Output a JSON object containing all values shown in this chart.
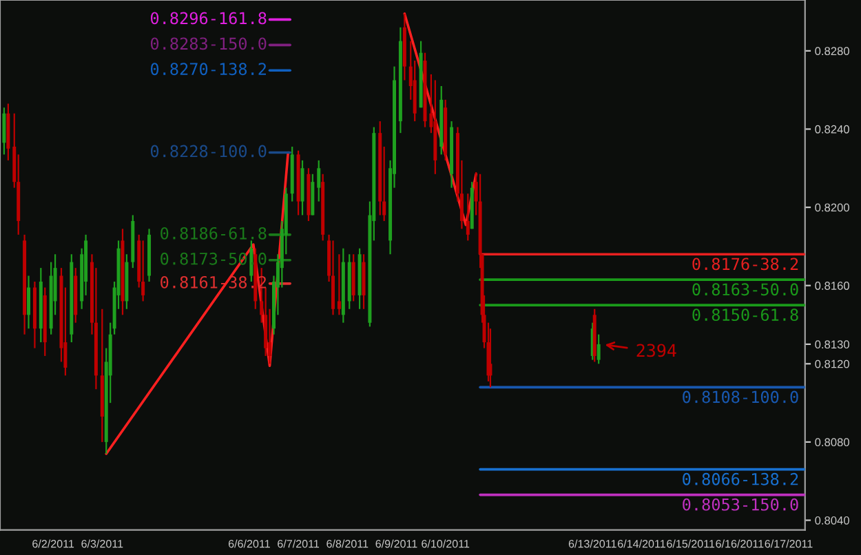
{
  "chart_data": {
    "type": "candlestick",
    "x": [
      "2011-06-01T00:00",
      "2011-06-01T02:00",
      "2011-06-01T05:00",
      "2011-06-01T07:00",
      "2011-06-01T10:00",
      "2011-06-01T12:00",
      "2011-06-01T15:00",
      "2011-06-01T18:00",
      "2011-06-01T20:00",
      "2011-06-01T23:00",
      "2011-06-02T01:00",
      "2011-06-02T04:00",
      "2011-06-02T06:00",
      "2011-06-02T09:00",
      "2011-06-02T11:00",
      "2011-06-02T14:00",
      "2011-06-02T16:00",
      "2011-06-02T19:00",
      "2011-06-02T21:00",
      "2011-06-03T00:00",
      "2011-06-03T02:00",
      "2011-06-03T04:00",
      "2011-06-03T06:00",
      "2011-06-03T08:00",
      "2011-06-03T10:00",
      "2011-06-03T12:00",
      "2011-06-03T15:00",
      "2011-06-03T18:00",
      "2011-06-03T20:00",
      "2011-06-03T23:00",
      "2011-06-06T01:00",
      "2011-06-06T03:00",
      "2011-06-06T06:00",
      "2011-06-06T08:00",
      "2011-06-06T10:00",
      "2011-06-06T12:00",
      "2011-06-06T14:00",
      "2011-06-06T16:00",
      "2011-06-06T18:00",
      "2011-06-06T21:00",
      "2011-06-07T00:00",
      "2011-06-07T02:00",
      "2011-06-07T05:00",
      "2011-06-07T07:00",
      "2011-06-07T10:00",
      "2011-06-07T12:00",
      "2011-06-07T15:00",
      "2011-06-07T17:00",
      "2011-06-07T20:00",
      "2011-06-07T22:00",
      "2011-06-08T01:00",
      "2011-06-08T03:00",
      "2011-06-08T06:00",
      "2011-06-08T08:00",
      "2011-06-08T11:00",
      "2011-06-08T13:00",
      "2011-06-08T16:00",
      "2011-06-08T18:00",
      "2011-06-08T21:00",
      "2011-06-08T23:00",
      "2011-06-09T02:00",
      "2011-06-09T04:00",
      "2011-06-09T07:00",
      "2011-06-09T09:00",
      "2011-06-09T12:00",
      "2011-06-09T14:00",
      "2011-06-09T17:00",
      "2011-06-09T19:00",
      "2011-06-09T22:00",
      "2011-06-10T00:00",
      "2011-06-10T03:00",
      "2011-06-10T06:00",
      "2011-06-10T08:00",
      "2011-06-10T11:00",
      "2011-06-10T13:00",
      "2011-06-10T15:00",
      "2011-06-10T17:00",
      "2011-06-10T18:00",
      "2011-06-10T19:00",
      "2011-06-10T21:00",
      "2011-06-10T22:00",
      "2011-06-13T00:00",
      "2011-06-13T01:00",
      "2011-06-13T03:00"
    ],
    "ohlc": [
      [
        0.8233,
        0.8251,
        0.8227,
        0.8248
      ],
      [
        0.8248,
        0.8253,
        0.8224,
        0.823
      ],
      [
        0.8231,
        0.8248,
        0.821,
        0.8213
      ],
      [
        0.8213,
        0.8227,
        0.8186,
        0.8193
      ],
      [
        0.8183,
        0.8186,
        0.8135,
        0.8145
      ],
      [
        0.8145,
        0.8165,
        0.8138,
        0.8159
      ],
      [
        0.8159,
        0.8162,
        0.8128,
        0.8138
      ],
      [
        0.8138,
        0.8169,
        0.8131,
        0.8162
      ],
      [
        0.8155,
        0.8159,
        0.8124,
        0.8131
      ],
      [
        0.8138,
        0.8172,
        0.8135,
        0.8165
      ],
      [
        0.8152,
        0.8176,
        0.8145,
        0.8169
      ],
      [
        0.8165,
        0.8169,
        0.8121,
        0.8128
      ],
      [
        0.8131,
        0.8159,
        0.8114,
        0.8118
      ],
      [
        0.8135,
        0.8176,
        0.8131,
        0.8172
      ],
      [
        0.8165,
        0.8169,
        0.8141,
        0.8145
      ],
      [
        0.8152,
        0.8179,
        0.8148,
        0.8176
      ],
      [
        0.8162,
        0.8186,
        0.8155,
        0.8183
      ],
      [
        0.8172,
        0.8176,
        0.8135,
        0.8141
      ],
      [
        0.8141,
        0.8169,
        0.8107,
        0.8114
      ],
      [
        0.8114,
        0.8148,
        0.808,
        0.8093
      ],
      [
        0.808,
        0.8128,
        0.8074,
        0.8121
      ],
      [
        0.8114,
        0.8141,
        0.81,
        0.8135
      ],
      [
        0.8138,
        0.8162,
        0.8135,
        0.8159
      ],
      [
        0.8155,
        0.8183,
        0.8148,
        0.8179
      ],
      [
        0.8183,
        0.8189,
        0.8145,
        0.8152
      ],
      [
        0.8152,
        0.8176,
        0.8148,
        0.8172
      ],
      [
        0.8172,
        0.8196,
        0.8169,
        0.8193
      ],
      [
        0.8183,
        0.8186,
        0.8159,
        0.8162
      ],
      [
        0.8162,
        0.8183,
        0.8152,
        0.8155
      ],
      [
        0.8165,
        0.8189,
        0.8162,
        0.8186
      ],
      [
        0.8165,
        0.8183,
        0.8162,
        0.8179
      ],
      [
        0.8176,
        0.8179,
        0.8148,
        0.8152
      ],
      [
        0.8152,
        0.8169,
        0.8141,
        0.8145
      ],
      [
        0.8145,
        0.8159,
        0.8124,
        0.8128
      ],
      [
        0.8131,
        0.8148,
        0.812,
        0.8124
      ],
      [
        0.8138,
        0.8165,
        0.8135,
        0.8162
      ],
      [
        0.8159,
        0.8176,
        0.8145,
        0.8172
      ],
      [
        0.8169,
        0.8193,
        0.8159,
        0.8189
      ],
      [
        0.8186,
        0.821,
        0.8176,
        0.8207
      ],
      [
        0.8207,
        0.8231,
        0.8203,
        0.8227
      ],
      [
        0.8227,
        0.8229,
        0.8196,
        0.8203
      ],
      [
        0.8203,
        0.8224,
        0.8196,
        0.822
      ],
      [
        0.8217,
        0.822,
        0.8193,
        0.8196
      ],
      [
        0.8196,
        0.8217,
        0.8196,
        0.8213
      ],
      [
        0.821,
        0.8224,
        0.8203,
        0.822
      ],
      [
        0.8213,
        0.8217,
        0.8183,
        0.8186
      ],
      [
        0.8183,
        0.8186,
        0.8162,
        0.8165
      ],
      [
        0.8165,
        0.8183,
        0.8145,
        0.8148
      ],
      [
        0.8152,
        0.8176,
        0.8145,
        0.8148
      ],
      [
        0.8145,
        0.8179,
        0.8141,
        0.8172
      ],
      [
        0.8152,
        0.8176,
        0.8148,
        0.8172
      ],
      [
        0.8172,
        0.8176,
        0.8152,
        0.8155
      ],
      [
        0.8155,
        0.8179,
        0.8148,
        0.8176
      ],
      [
        0.8172,
        0.8176,
        0.8148,
        0.8155
      ],
      [
        0.8141,
        0.8203,
        0.8139,
        0.8196
      ],
      [
        0.8193,
        0.8241,
        0.8183,
        0.8238
      ],
      [
        0.8238,
        0.8244,
        0.8196,
        0.8203
      ],
      [
        0.8203,
        0.8231,
        0.8193,
        0.8196
      ],
      [
        0.8183,
        0.8224,
        0.8176,
        0.822
      ],
      [
        0.8217,
        0.8272,
        0.821,
        0.8265
      ],
      [
        0.8244,
        0.8292,
        0.8238,
        0.8285
      ],
      [
        0.8292,
        0.8299,
        0.8265,
        0.8272
      ],
      [
        0.8272,
        0.8285,
        0.8255,
        0.8262
      ],
      [
        0.8265,
        0.8275,
        0.8244,
        0.8248
      ],
      [
        0.8251,
        0.8285,
        0.8251,
        0.8279
      ],
      [
        0.8275,
        0.8279,
        0.8241,
        0.8244
      ],
      [
        0.8248,
        0.8268,
        0.8238,
        0.8241
      ],
      [
        0.8244,
        0.8265,
        0.8217,
        0.8224
      ],
      [
        0.8231,
        0.8262,
        0.8227,
        0.8255
      ],
      [
        0.8251,
        0.8255,
        0.8224,
        0.8227
      ],
      [
        0.8217,
        0.8244,
        0.821,
        0.8241
      ],
      [
        0.8238,
        0.8241,
        0.8203,
        0.8207
      ],
      [
        0.8207,
        0.8224,
        0.8189,
        0.8193
      ],
      [
        0.8193,
        0.8207,
        0.8183,
        0.8186
      ],
      [
        0.8189,
        0.8213,
        0.8189,
        0.821
      ],
      [
        0.8213,
        0.8218,
        0.8196,
        0.8203
      ],
      [
        0.8203,
        0.8217,
        0.8169,
        0.8176
      ],
      [
        0.8176,
        0.8176,
        0.8141,
        0.8145
      ],
      [
        0.8145,
        0.8155,
        0.8128,
        0.8131
      ],
      [
        0.8131,
        0.8141,
        0.8111,
        0.8114
      ],
      [
        0.812,
        0.8138,
        0.8108,
        0.8114
      ],
      [
        0.8124,
        0.8141,
        0.8122,
        0.8138
      ],
      [
        0.8145,
        0.8148,
        0.8121,
        0.8124
      ],
      [
        0.8122,
        0.8135,
        0.812,
        0.813
      ]
    ],
    "colors": [
      "#1fa01f",
      "#c00000",
      "#c00000",
      "#c00000",
      "#c00000",
      "#1fa01f",
      "#c00000",
      "#1fa01f",
      "#c00000",
      "#1fa01f",
      "#1fa01f",
      "#c00000",
      "#c00000",
      "#1fa01f",
      "#c00000",
      "#1fa01f",
      "#1fa01f",
      "#c00000",
      "#c00000",
      "#c00000",
      "#1fa01f",
      "#1fa01f",
      "#1fa01f",
      "#1fa01f",
      "#c00000",
      "#1fa01f",
      "#1fa01f",
      "#c00000",
      "#c00000",
      "#1fa01f",
      "#1fa01f",
      "#c00000",
      "#c00000",
      "#c00000",
      "#c00000",
      "#1fa01f",
      "#1fa01f",
      "#1fa01f",
      "#1fa01f",
      "#1fa01f",
      "#c00000",
      "#1fa01f",
      "#c00000",
      "#1fa01f",
      "#1fa01f",
      "#c00000",
      "#c00000",
      "#c00000",
      "#c00000",
      "#1fa01f",
      "#1fa01f",
      "#c00000",
      "#1fa01f",
      "#c00000",
      "#1fa01f",
      "#1fa01f",
      "#c00000",
      "#c00000",
      "#1fa01f",
      "#1fa01f",
      "#1fa01f",
      "#c00000",
      "#c00000",
      "#c00000",
      "#1fa01f",
      "#c00000",
      "#c00000",
      "#c00000",
      "#1fa01f",
      "#c00000",
      "#1fa01f",
      "#c00000",
      "#c00000",
      "#c00000",
      "#1fa01f",
      "#c00000",
      "#c00000",
      "#c00000",
      "#c00000",
      "#c00000",
      "#c00000",
      "#1fa01f",
      "#c00000",
      "#1fa01f"
    ],
    "series": [
      {
        "type": "line",
        "color": "#ff2020",
        "x": [
          "2011-06-03T02:00",
          "2011-06-06T02:00",
          "2011-06-06T10:00",
          "2011-06-06T19:00"
        ],
        "values": [
          0.8074,
          0.8181,
          0.8119,
          0.8228
        ]
      },
      {
        "type": "line",
        "color": "#ff2020",
        "x": [
          "2011-06-09T04:00",
          "2011-06-10T10:00",
          "2011-06-10T15:00"
        ],
        "values": [
          0.8299,
          0.8191,
          0.8217
        ]
      },
      {
        "type": "line",
        "name": "0.8296-161.8",
        "color": "#e020e0",
        "x": [
          "2011-06-06T10:00",
          "2011-06-06T20:00"
        ],
        "values": [
          0.8296,
          0.8296
        ]
      },
      {
        "type": "line",
        "name": "0.8283-150.0",
        "color": "#802080",
        "x": [
          "2011-06-06T10:00",
          "2011-06-06T20:00"
        ],
        "values": [
          0.8283,
          0.8283
        ]
      },
      {
        "type": "line",
        "name": "0.8270-138.2",
        "color": "#1060c0",
        "x": [
          "2011-06-06T10:00",
          "2011-06-06T20:00"
        ],
        "values": [
          0.827,
          0.827
        ]
      },
      {
        "type": "line",
        "name": "0.8228-100.0",
        "color": "#1a4a8a",
        "x": [
          "2011-06-06T10:00",
          "2011-06-06T20:00"
        ],
        "values": [
          0.8228,
          0.8228
        ]
      },
      {
        "type": "line",
        "name": "0.8186-61.8",
        "color": "#1a7a1a",
        "x": [
          "2011-06-06T10:00",
          "2011-06-06T20:00"
        ],
        "values": [
          0.8186,
          0.8186
        ]
      },
      {
        "type": "line",
        "name": "0.8173-50.0",
        "color": "#1a7a1a",
        "x": [
          "2011-06-06T10:00",
          "2011-06-06T20:00"
        ],
        "values": [
          0.8173,
          0.8173
        ]
      },
      {
        "type": "line",
        "name": "0.8161-38.2",
        "color": "#e03030",
        "x": [
          "2011-06-06T10:00",
          "2011-06-06T20:00"
        ],
        "values": [
          0.8161,
          0.8161
        ]
      },
      {
        "type": "line",
        "name": "0.8176-38.2",
        "color": "#e82020",
        "x": [
          "2011-06-10T17:00",
          "2011-06-17T08:00"
        ],
        "values": [
          0.8176,
          0.8176
        ]
      },
      {
        "type": "line",
        "name": "0.8163-50.0",
        "color": "#1a9a1a",
        "x": [
          "2011-06-10T17:00",
          "2011-06-17T08:00"
        ],
        "values": [
          0.8163,
          0.8163
        ]
      },
      {
        "type": "line",
        "name": "0.8150-61.8",
        "color": "#1a9a1a",
        "x": [
          "2011-06-10T17:00",
          "2011-06-17T08:00"
        ],
        "values": [
          0.815,
          0.815
        ]
      },
      {
        "type": "line",
        "name": "0.8108-100.0",
        "color": "#1858b0",
        "x": [
          "2011-06-10T17:00",
          "2011-06-17T08:00"
        ],
        "values": [
          0.8108,
          0.8108
        ]
      },
      {
        "type": "line",
        "name": "0.8066-138.2",
        "color": "#1870d0",
        "x": [
          "2011-06-10T17:00",
          "2011-06-17T08:00"
        ],
        "values": [
          0.8066,
          0.8066
        ]
      },
      {
        "type": "line",
        "name": "0.8053-150.0",
        "color": "#c030c0",
        "x": [
          "2011-06-10T17:00",
          "2011-06-17T08:00"
        ],
        "values": [
          0.8053,
          0.8053
        ]
      }
    ],
    "annotations": [
      "2394"
    ],
    "xlim": [
      "2011-05-31T22:00",
      "2011-06-17T08:00"
    ],
    "xticks": [
      {
        "value": "2011-06-02",
        "label": "6/2/2011"
      },
      {
        "value": "2011-06-03",
        "label": "6/3/2011"
      },
      {
        "value": "2011-06-06",
        "label": "6/6/2011"
      },
      {
        "value": "2011-06-07",
        "label": "6/7/2011"
      },
      {
        "value": "2011-06-08",
        "label": "6/8/2011"
      },
      {
        "value": "2011-06-09",
        "label": "6/9/2011"
      },
      {
        "value": "2011-06-10",
        "label": "6/10/2011"
      },
      {
        "value": "2011-06-13",
        "label": "6/13/2011"
      },
      {
        "value": "2011-06-14",
        "label": "6/14/2011"
      },
      {
        "value": "2011-06-15",
        "label": "6/15/2011"
      },
      {
        "value": "2011-06-16",
        "label": "6/16/2011"
      },
      {
        "value": "2011-06-17",
        "label": "6/17/2011"
      }
    ],
    "ylim": [
      0.8035,
      0.8306
    ],
    "yticks": [
      {
        "value": 0.804,
        "label": "0.8040"
      },
      {
        "value": 0.808,
        "label": "0.8080"
      },
      {
        "value": 0.812,
        "label": "0.8120"
      },
      {
        "value": 0.813,
        "label": "0.8130"
      },
      {
        "value": 0.816,
        "label": "0.8160"
      },
      {
        "value": 0.82,
        "label": "0.8200"
      },
      {
        "value": 0.824,
        "label": "0.8240"
      },
      {
        "value": 0.828,
        "label": "0.8280"
      }
    ],
    "grid": false,
    "legend": false
  }
}
